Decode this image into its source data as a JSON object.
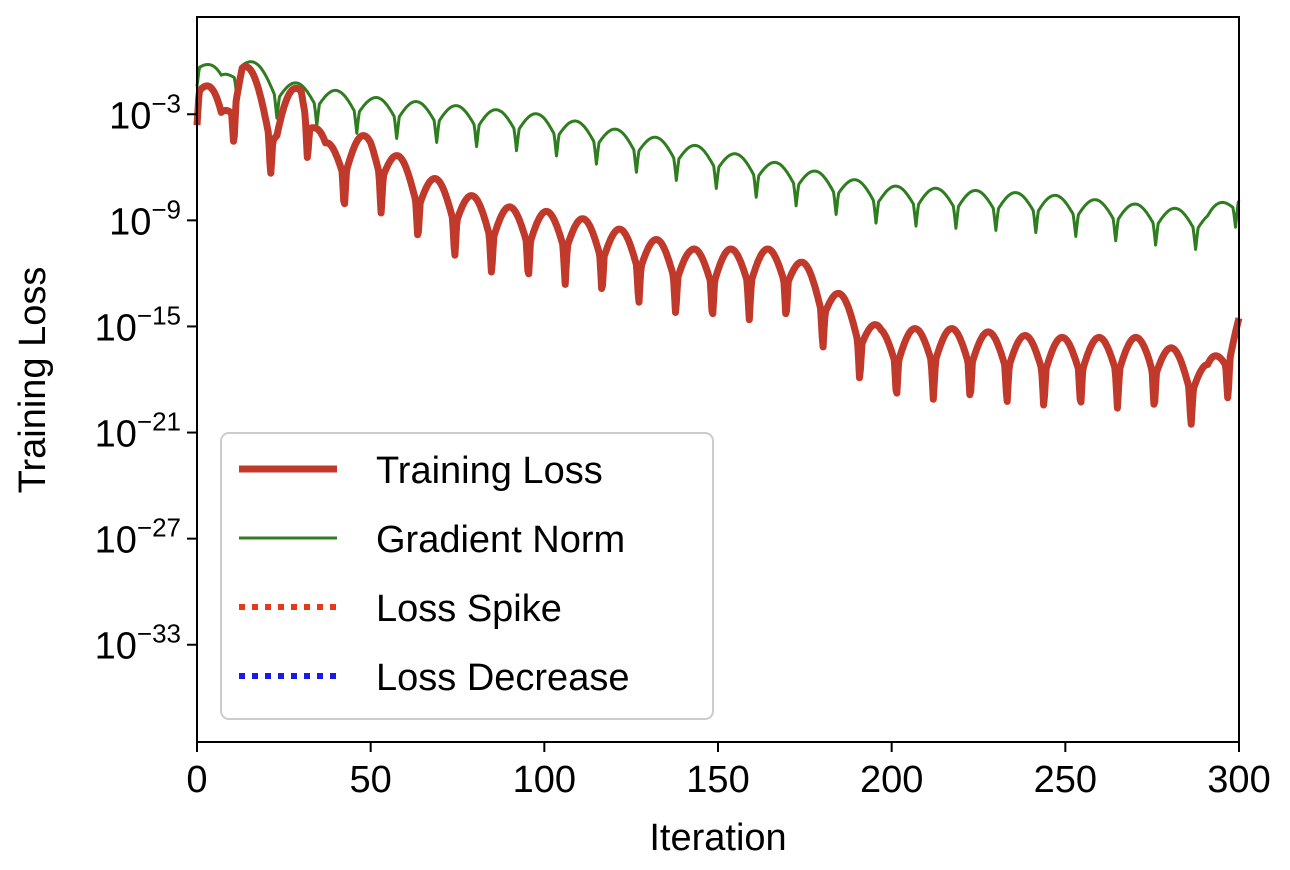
{
  "chart_data": {
    "type": "line",
    "xlabel": "Iteration",
    "ylabel": "Training Loss",
    "xlim": [
      0,
      300
    ],
    "y_log_exponent_range": [
      -38.5,
      2.5
    ],
    "yscale": "log",
    "x_ticks": [
      "0",
      "50",
      "100",
      "150",
      "200",
      "250",
      "300"
    ],
    "y_ticks": [
      {
        "base": "10",
        "exp": "−3",
        "value": -3
      },
      {
        "base": "10",
        "exp": "−9",
        "value": -9
      },
      {
        "base": "10",
        "exp": "−15",
        "value": -15
      },
      {
        "base": "10",
        "exp": "−21",
        "value": -21
      },
      {
        "base": "10",
        "exp": "−27",
        "value": -27
      },
      {
        "base": "10",
        "exp": "−33",
        "value": -33
      }
    ],
    "grid": false,
    "legend_position": "lower-left",
    "series": [
      {
        "name": "Training Loss",
        "color": "#c0392b",
        "style": "solid-thick",
        "log10_values_at_key_points": [
          {
            "x": 0,
            "y": -0.5
          },
          {
            "x": 7,
            "y": -3.5
          },
          {
            "x": 13,
            "y": -0.5
          },
          {
            "x": 23,
            "y": -4
          },
          {
            "x": 30,
            "y": -1.5
          },
          {
            "x": 37,
            "y": -5.5
          },
          {
            "x": 50,
            "y": -5
          },
          {
            "x": 63,
            "y": -7
          },
          {
            "x": 85,
            "y": -9
          },
          {
            "x": 106,
            "y": -9.5
          },
          {
            "x": 142,
            "y": -11.5
          },
          {
            "x": 170,
            "y": -11.5
          },
          {
            "x": 197,
            "y": -16
          },
          {
            "x": 218,
            "y": -16
          },
          {
            "x": 244,
            "y": -16.5
          },
          {
            "x": 274,
            "y": -16.5
          },
          {
            "x": 291,
            "y": -18
          },
          {
            "x": 300,
            "y": -15
          }
        ]
      },
      {
        "name": "Gradient Norm",
        "color": "#2e7d1f",
        "style": "solid-thin",
        "log10_values_at_key_points": [
          {
            "x": 0,
            "y": 0.3
          },
          {
            "x": 7,
            "y": -1.2
          },
          {
            "x": 13,
            "y": 0
          },
          {
            "x": 23,
            "y": -1.5
          },
          {
            "x": 50,
            "y": -2.5
          },
          {
            "x": 100,
            "y": -3.5
          },
          {
            "x": 150,
            "y": -5.5
          },
          {
            "x": 197,
            "y": -7.5
          },
          {
            "x": 244,
            "y": -8
          },
          {
            "x": 291,
            "y": -9
          },
          {
            "x": 300,
            "y": -7.5
          }
        ]
      },
      {
        "name": "Loss Spike",
        "color": "#e8381a",
        "style": "dotted",
        "log10_values_at_key_points": []
      },
      {
        "name": "Loss Decrease",
        "color": "#1a1ae8",
        "style": "dotted",
        "log10_values_at_key_points": []
      }
    ]
  }
}
